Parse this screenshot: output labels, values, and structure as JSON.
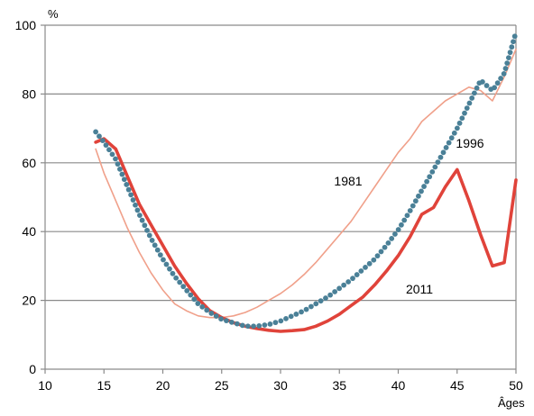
{
  "chart_data": {
    "type": "line",
    "ylabel": "%",
    "xlabel": "Âges",
    "xlim": [
      10,
      50
    ],
    "ylim": [
      0,
      100
    ],
    "x_ticks": [
      10,
      15,
      20,
      25,
      30,
      35,
      40,
      45,
      50
    ],
    "y_ticks": [
      0,
      20,
      40,
      60,
      80,
      100
    ],
    "grid": "horizontal",
    "series": [
      {
        "name": "1981",
        "color": "#f0a08a",
        "style": "thin-line",
        "x": [
          14.3,
          15,
          16,
          17,
          18,
          19,
          20,
          21,
          22,
          23,
          24,
          25,
          26,
          27,
          28,
          29,
          30,
          31,
          32,
          33,
          34,
          35,
          36,
          37,
          38,
          39,
          40,
          41,
          42,
          43,
          44,
          45,
          46,
          47,
          48,
          49,
          50
        ],
        "y": [
          64,
          57,
          49,
          41,
          34,
          28,
          23,
          19,
          17,
          15.5,
          15,
          15,
          15.5,
          16.5,
          18,
          20,
          22,
          24.5,
          27.5,
          31,
          35,
          39,
          43,
          48,
          53,
          58,
          63,
          67,
          72,
          75,
          78,
          80,
          82,
          81,
          78,
          85,
          93
        ]
      },
      {
        "name": "1996",
        "color": "#4a8097",
        "style": "dotted",
        "x": [
          14.3,
          15,
          16,
          17,
          18,
          19,
          20,
          21,
          22,
          23,
          24,
          25,
          26,
          27,
          28,
          29,
          30,
          31,
          32,
          33,
          34,
          35,
          36,
          37,
          38,
          39,
          40,
          41,
          42,
          43,
          44,
          45,
          46,
          47,
          48,
          49,
          50
        ],
        "y": [
          69,
          66,
          61,
          53,
          45,
          38,
          32,
          27,
          23,
          19,
          16.5,
          14.5,
          13.5,
          12.5,
          12.5,
          13,
          14,
          15.5,
          17,
          19,
          21,
          23.5,
          26,
          29,
          32,
          36,
          40.5,
          46,
          52,
          58,
          64,
          70,
          77,
          84,
          81,
          86,
          98
        ]
      },
      {
        "name": "2011",
        "color": "#e0433a",
        "style": "thick-line",
        "x": [
          14.3,
          15,
          16,
          17,
          18,
          19,
          20,
          21,
          22,
          23,
          24,
          25,
          26,
          27,
          28,
          29,
          30,
          31,
          32,
          33,
          34,
          35,
          36,
          37,
          38,
          39,
          40,
          41,
          42,
          43,
          44,
          45,
          46,
          47,
          48,
          49,
          50
        ],
        "y": [
          66,
          67,
          64,
          56,
          48,
          42,
          36,
          30,
          25,
          20.5,
          17,
          15,
          13.5,
          12.5,
          11.8,
          11.3,
          11,
          11.2,
          11.5,
          12.5,
          14,
          16,
          18.5,
          21,
          24.5,
          28.5,
          33,
          38.5,
          45,
          47,
          53,
          58,
          49,
          39,
          30,
          31,
          55
        ]
      }
    ]
  }
}
